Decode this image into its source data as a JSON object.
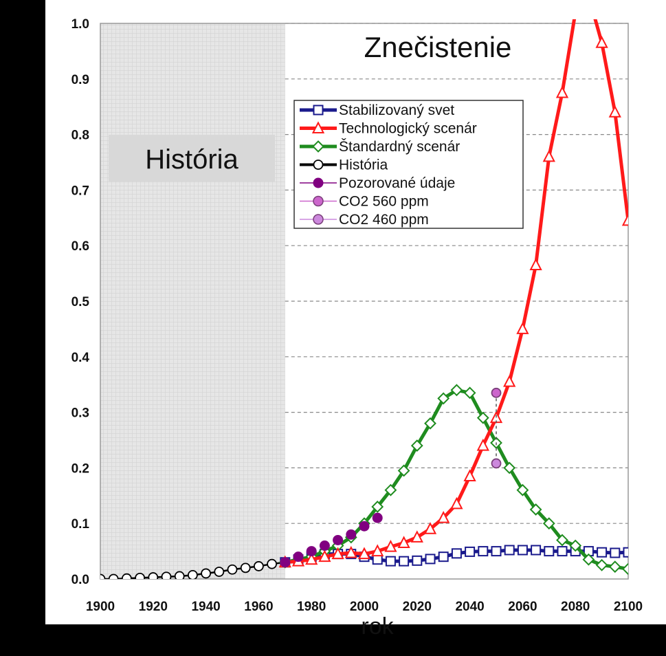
{
  "chart_data": {
    "type": "line",
    "title": "Znečistenie",
    "xlabel": "rok",
    "ylabel": "",
    "xlim": [
      1900,
      2100
    ],
    "ylim": [
      0,
      1.0
    ],
    "x_ticks": [
      "1900",
      "1920",
      "1940",
      "1960",
      "1980",
      "2000",
      "2020",
      "2040",
      "2060",
      "2080",
      "2100"
    ],
    "y_ticks": [
      "0.0",
      "0.1",
      "0.2",
      "0.3",
      "0.4",
      "0.5",
      "0.6",
      "0.7",
      "0.8",
      "0.9",
      "1.0"
    ],
    "grid": "horizontal dashed",
    "legend_placement": "upper-center",
    "shaded_region": {
      "label": "História",
      "x_range": [
        1900,
        1970
      ]
    },
    "series": [
      {
        "name": "Stabilizovaný svet",
        "color": "#1a1a8c",
        "marker": "square",
        "x": [
          1970,
          1975,
          1980,
          1985,
          1990,
          1995,
          2000,
          2005,
          2010,
          2015,
          2020,
          2025,
          2030,
          2035,
          2040,
          2045,
          2050,
          2055,
          2060,
          2065,
          2070,
          2075,
          2080,
          2085,
          2090,
          2095,
          2100
        ],
        "y": [
          0.03,
          0.035,
          0.04,
          0.045,
          0.045,
          0.045,
          0.04,
          0.035,
          0.032,
          0.032,
          0.033,
          0.036,
          0.04,
          0.046,
          0.049,
          0.05,
          0.05,
          0.052,
          0.052,
          0.052,
          0.05,
          0.05,
          0.05,
          0.05,
          0.048,
          0.047,
          0.048
        ]
      },
      {
        "name": "Technologický scenár",
        "color": "#ff1a1a",
        "marker": "triangle",
        "x": [
          1970,
          1975,
          1980,
          1985,
          1990,
          1995,
          2000,
          2005,
          2010,
          2015,
          2020,
          2025,
          2030,
          2035,
          2040,
          2045,
          2050,
          2055,
          2060,
          2065,
          2070,
          2075,
          2080,
          2085,
          2090,
          2095,
          2100
        ],
        "y": [
          0.03,
          0.032,
          0.035,
          0.04,
          0.045,
          0.047,
          0.045,
          0.05,
          0.058,
          0.065,
          0.075,
          0.09,
          0.11,
          0.135,
          0.185,
          0.24,
          0.29,
          0.355,
          0.45,
          0.565,
          0.76,
          0.875,
          1.02,
          1.05,
          0.965,
          0.84,
          0.645
        ]
      },
      {
        "name": "Štandardný scenár",
        "color": "#1f8c1f",
        "marker": "diamond",
        "x": [
          1970,
          1975,
          1980,
          1985,
          1990,
          1995,
          2000,
          2005,
          2010,
          2015,
          2020,
          2025,
          2030,
          2035,
          2040,
          2045,
          2050,
          2055,
          2060,
          2065,
          2070,
          2075,
          2080,
          2085,
          2090,
          2095,
          2100
        ],
        "y": [
          0.03,
          0.035,
          0.04,
          0.05,
          0.06,
          0.075,
          0.1,
          0.13,
          0.16,
          0.195,
          0.24,
          0.28,
          0.325,
          0.34,
          0.335,
          0.29,
          0.245,
          0.2,
          0.16,
          0.125,
          0.1,
          0.07,
          0.06,
          0.035,
          0.025,
          0.022,
          0.018
        ]
      },
      {
        "name": "História",
        "color": "#000000",
        "marker": "circle",
        "x": [
          1900,
          1905,
          1910,
          1915,
          1920,
          1925,
          1930,
          1935,
          1940,
          1945,
          1950,
          1955,
          1960,
          1965,
          1970
        ],
        "y": [
          0.0,
          0.0,
          0.001,
          0.002,
          0.003,
          0.004,
          0.005,
          0.007,
          0.01,
          0.013,
          0.017,
          0.02,
          0.023,
          0.027,
          0.03
        ]
      },
      {
        "name": "Pozorované údaje",
        "color": "#800080",
        "marker": "filled-circle",
        "x": [
          1970,
          1975,
          1980,
          1985,
          1990,
          1995,
          2000,
          2005
        ],
        "y": [
          0.03,
          0.04,
          0.05,
          0.06,
          0.07,
          0.08,
          0.095,
          0.11
        ]
      },
      {
        "name": "CO2 560 ppm",
        "color": "#cc66cc",
        "marker": "circle",
        "x": [
          2050
        ],
        "y": [
          0.335
        ]
      },
      {
        "name": "CO2 460 ppm",
        "color": "#cc88dd",
        "marker": "circle",
        "x": [
          2050
        ],
        "y": [
          0.208
        ]
      }
    ]
  }
}
